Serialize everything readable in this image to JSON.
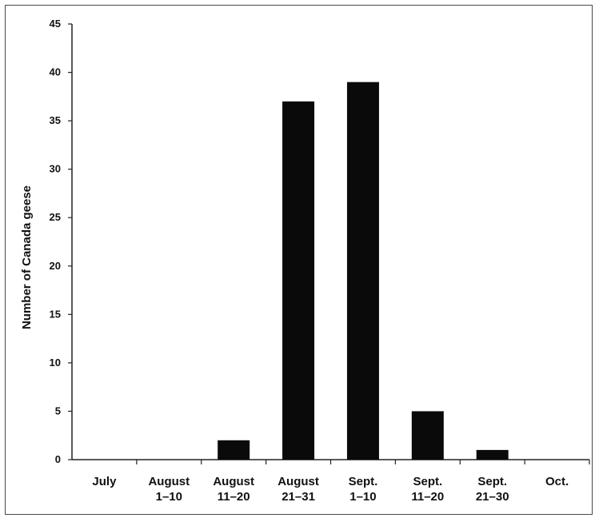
{
  "chart_data": {
    "type": "bar",
    "title": "",
    "xlabel": "",
    "ylabel": "Number of Canada geese",
    "ylim": [
      0,
      45
    ],
    "yticks": [
      0,
      5,
      10,
      15,
      20,
      25,
      30,
      35,
      40,
      45
    ],
    "categories": [
      [
        "July"
      ],
      [
        "August",
        "1–10"
      ],
      [
        "August",
        "11–20"
      ],
      [
        "August",
        "21–31"
      ],
      [
        "Sept.",
        "1–10"
      ],
      [
        "Sept.",
        "11–20"
      ],
      [
        "Sept.",
        "21–30"
      ],
      [
        "Oct."
      ]
    ],
    "values": [
      0,
      0,
      2,
      37,
      39,
      5,
      1,
      0
    ],
    "bar_color": "#0a0a0a",
    "grid": false,
    "legend": "none"
  }
}
